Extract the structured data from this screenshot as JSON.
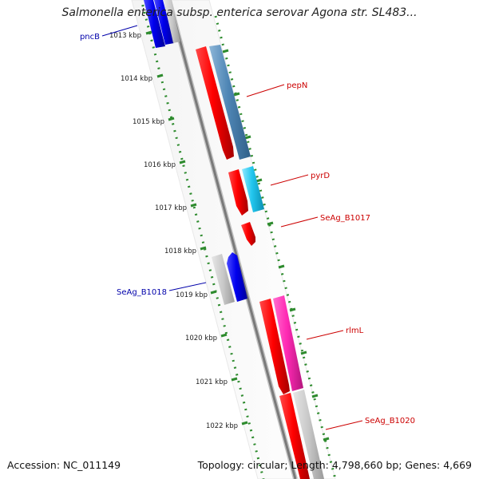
{
  "title": "Salmonella enterica subsp. enterica serovar Agona str. SL483...",
  "footer": {
    "accession_label": "Accession:",
    "accession": "NC_011149",
    "topology_label": "Topology:",
    "topology": "circular;",
    "length_label": "Length:",
    "length": "4,798,660 bp;",
    "genes_label": "Genes:",
    "genes": "4,669"
  },
  "colors": {
    "backbone": "#7a7a7a",
    "ticks": "#2e8b2e",
    "forward_label": "#cc0000",
    "reverse_label": "#0000aa"
  },
  "ticks": [
    "1013 kbp",
    "1014 kbp",
    "1015 kbp",
    "1016 kbp",
    "1017 kbp",
    "1018 kbp",
    "1019 kbp",
    "1020 kbp",
    "1021 kbp",
    "1022 kbp"
  ],
  "gene_labels": {
    "pncB": "pncB",
    "pepN": "pepN",
    "pyrD": "pyrD",
    "SeAg_B1017": "SeAg_B1017",
    "SeAg_B1018": "SeAg_B1018",
    "rlmL": "rlmL",
    "SeAg_B1020": "SeAg_B1020"
  }
}
